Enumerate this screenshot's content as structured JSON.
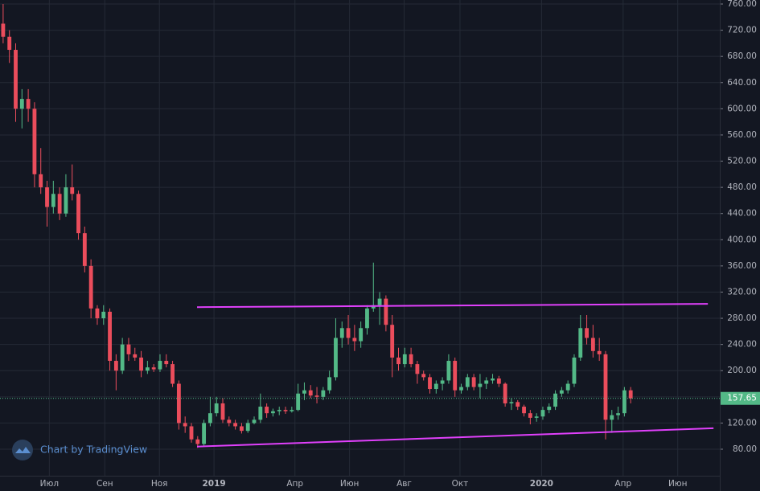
{
  "chart_data": {
    "type": "candlestick",
    "watermark": "Chart by TradingView",
    "up_color": "#53b987",
    "down_color": "#eb4d5c",
    "trendline_color": "#e040fb",
    "open": [
      730,
      710,
      690,
      600,
      615,
      600,
      500,
      480,
      450,
      470,
      440,
      480,
      470,
      410,
      360,
      295,
      280,
      290,
      215,
      200,
      240,
      225,
      220,
      200,
      205,
      202,
      215,
      210,
      180,
      120,
      115,
      95,
      88,
      120,
      135,
      150,
      125,
      120,
      115,
      108,
      120,
      125,
      145,
      135,
      138,
      140,
      138,
      140,
      165,
      170,
      162,
      160,
      170,
      190,
      250,
      265,
      250,
      245,
      265,
      295,
      300,
      310,
      270,
      220,
      210,
      225,
      210,
      195,
      190,
      172,
      180,
      185,
      215,
      170,
      175,
      190,
      175,
      180,
      185,
      188,
      180,
      150,
      152,
      145,
      135,
      128,
      130,
      140,
      145,
      165,
      170,
      180,
      220,
      265,
      250,
      230,
      225,
      125,
      132,
      135,
      170
    ],
    "high": [
      760,
      720,
      700,
      630,
      630,
      610,
      540,
      490,
      490,
      480,
      500,
      515,
      475,
      420,
      370,
      300,
      300,
      295,
      225,
      250,
      250,
      235,
      230,
      215,
      210,
      225,
      225,
      215,
      185,
      130,
      120,
      100,
      125,
      160,
      160,
      158,
      130,
      125,
      120,
      125,
      130,
      165,
      150,
      142,
      145,
      145,
      145,
      180,
      182,
      178,
      175,
      175,
      200,
      280,
      275,
      285,
      270,
      275,
      300,
      365,
      320,
      315,
      285,
      235,
      235,
      235,
      215,
      200,
      195,
      185,
      190,
      225,
      220,
      180,
      195,
      195,
      195,
      190,
      195,
      192,
      182,
      158,
      155,
      148,
      140,
      135,
      145,
      150,
      170,
      175,
      185,
      225,
      285,
      285,
      270,
      250,
      230,
      140,
      145,
      175,
      175
    ],
    "low": [
      700,
      670,
      580,
      570,
      580,
      480,
      470,
      420,
      440,
      430,
      435,
      460,
      400,
      350,
      280,
      270,
      270,
      200,
      170,
      195,
      215,
      215,
      190,
      195,
      198,
      198,
      205,
      175,
      110,
      105,
      90,
      82,
      85,
      115,
      130,
      120,
      115,
      110,
      104,
      105,
      118,
      120,
      128,
      130,
      132,
      134,
      136,
      138,
      155,
      158,
      150,
      155,
      165,
      185,
      235,
      240,
      230,
      235,
      255,
      290,
      270,
      260,
      190,
      200,
      205,
      205,
      180,
      185,
      165,
      165,
      170,
      180,
      160,
      165,
      170,
      170,
      158,
      172,
      180,
      175,
      145,
      140,
      140,
      130,
      118,
      122,
      125,
      135,
      140,
      160,
      165,
      175,
      215,
      240,
      220,
      215,
      95,
      105,
      125,
      130,
      150
    ],
    "close": [
      710,
      690,
      600,
      615,
      600,
      500,
      480,
      450,
      470,
      440,
      480,
      470,
      410,
      360,
      295,
      280,
      290,
      215,
      200,
      240,
      225,
      220,
      200,
      205,
      202,
      215,
      210,
      180,
      120,
      115,
      95,
      88,
      120,
      135,
      150,
      125,
      120,
      115,
      108,
      120,
      125,
      145,
      135,
      138,
      140,
      138,
      140,
      165,
      170,
      162,
      160,
      170,
      190,
      250,
      265,
      250,
      245,
      265,
      295,
      300,
      310,
      270,
      220,
      210,
      225,
      210,
      195,
      190,
      172,
      180,
      185,
      215,
      170,
      175,
      190,
      175,
      180,
      185,
      188,
      180,
      150,
      152,
      145,
      135,
      128,
      130,
      140,
      145,
      165,
      170,
      180,
      220,
      265,
      250,
      230,
      225,
      125,
      132,
      135,
      170,
      157.65
    ],
    "trendlines": [
      {
        "x": [
          31.4,
          112.8
        ],
        "y": [
          297,
          302
        ]
      },
      {
        "x": [
          31.4,
          113.7
        ],
        "y": [
          84,
          112
        ]
      }
    ],
    "xlim": [
      0,
      114.7
    ],
    "xticks": [
      {
        "value": 7.86,
        "label": "Июл"
      },
      {
        "value": 16.7,
        "label": "Сен"
      },
      {
        "value": 25.4,
        "label": "Ноя"
      },
      {
        "value": 34.1,
        "label": "2019"
      },
      {
        "value": 47.0,
        "label": "Апр"
      },
      {
        "value": 55.7,
        "label": "Июн"
      },
      {
        "value": 64.4,
        "label": "Авг"
      },
      {
        "value": 73.3,
        "label": "Окт"
      },
      {
        "value": 86.3,
        "label": "2020"
      },
      {
        "value": 99.3,
        "label": "Апр"
      },
      {
        "value": 108.0,
        "label": "Июн"
      }
    ],
    "ylim": [
      39.5,
      760
    ],
    "yticks": [
      {
        "value": 80,
        "label": "80.00"
      },
      {
        "value": 120,
        "label": "120.00"
      },
      {
        "value": 160,
        "label": "160.00"
      },
      {
        "value": 200,
        "label": "200.00"
      },
      {
        "value": 240,
        "label": "240.00"
      },
      {
        "value": 280,
        "label": "280.00"
      },
      {
        "value": 320,
        "label": "320.00"
      },
      {
        "value": 360,
        "label": "360.00"
      },
      {
        "value": 400,
        "label": "400.00"
      },
      {
        "value": 440,
        "label": "440.00"
      },
      {
        "value": 480,
        "label": "480.00"
      },
      {
        "value": 520,
        "label": "520.00"
      },
      {
        "value": 560,
        "label": "560.00"
      },
      {
        "value": 600,
        "label": "600.00"
      },
      {
        "value": 640,
        "label": "640.00"
      },
      {
        "value": 680,
        "label": "680.00"
      },
      {
        "value": 720,
        "label": "720.00"
      },
      {
        "value": 760,
        "label": "760.00"
      }
    ],
    "grid": true
  }
}
